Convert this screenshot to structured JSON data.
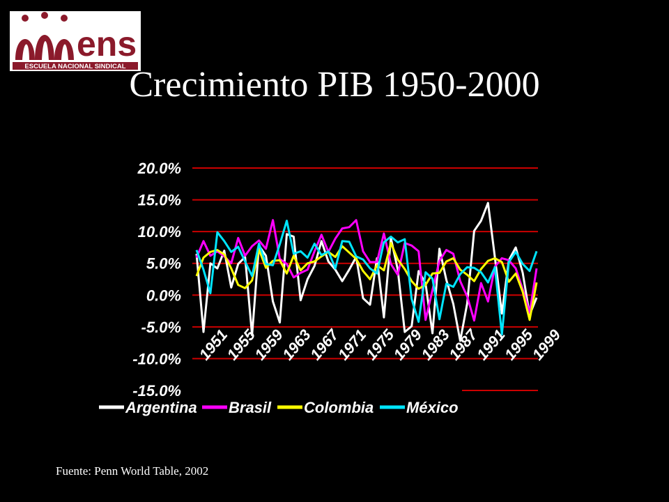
{
  "logo": {
    "text": "ens",
    "subtitle": "ESCUELA NACIONAL SINDICAL",
    "color": "#8b1a2b",
    "icon": "ens-logo"
  },
  "title": "Crecimiento PIB 1950-2000",
  "source": "Fuente: Penn World Table, 2002",
  "colors": {
    "background": "#000000",
    "gridline": "#cc0000",
    "text": "#ffffff"
  },
  "chart_data": {
    "type": "line",
    "title": "",
    "xlabel": "",
    "ylabel": "",
    "x": [
      1951,
      1952,
      1953,
      1954,
      1955,
      1956,
      1957,
      1958,
      1959,
      1960,
      1961,
      1962,
      1963,
      1964,
      1965,
      1966,
      1967,
      1968,
      1969,
      1970,
      1971,
      1972,
      1973,
      1974,
      1975,
      1976,
      1977,
      1978,
      1979,
      1980,
      1981,
      1982,
      1983,
      1984,
      1985,
      1986,
      1987,
      1988,
      1989,
      1990,
      1991,
      1992,
      1993,
      1994,
      1995,
      1996,
      1997,
      1998,
      1999,
      2000
    ],
    "x_tick_labels": [
      "1951",
      "1955",
      "1959",
      "1963",
      "1967",
      "1971",
      "1975",
      "1979",
      "1983",
      "1987",
      "1991",
      "1995",
      "1999"
    ],
    "y_tick_labels": [
      "20.0%",
      "15.0%",
      "10.0%",
      "5.0%",
      "0.0%",
      "-5.0%",
      "-10.0%",
      "-15.0%"
    ],
    "ylim": [
      -15,
      20
    ],
    "grid": true,
    "legend": "bottom",
    "series": [
      {
        "name": "Argentina",
        "color": "#ffffff",
        "values": [
          6.5,
          -5.8,
          5.0,
          4.2,
          7.0,
          1.2,
          4.9,
          6.0,
          -6.3,
          7.8,
          6.2,
          -1.0,
          -4.3,
          9.6,
          9.2,
          -0.8,
          2.5,
          4.6,
          8.5,
          5.3,
          4.0,
          2.2,
          4.0,
          6.0,
          -0.5,
          -1.5,
          5.8,
          -3.5,
          9.0,
          4.0,
          -5.8,
          -4.9,
          3.8,
          1.8,
          -6.0,
          7.3,
          2.4,
          -1.4,
          -7.2,
          -1.3,
          10.1,
          11.7,
          14.5,
          5.9,
          -2.9,
          5.5,
          7.5,
          3.5,
          -3.1,
          -0.4
        ]
      },
      {
        "name": "Brasil",
        "color": "#ff00ff",
        "values": [
          5.9,
          8.5,
          6.2,
          6.9,
          6.1,
          5.0,
          9.0,
          6.2,
          7.7,
          8.6,
          7.3,
          11.8,
          5.7,
          4.9,
          2.8,
          3.5,
          4.0,
          6.9,
          9.5,
          6.8,
          8.9,
          10.5,
          10.7,
          11.8,
          6.9,
          5.2,
          5.2,
          9.7,
          4.9,
          3.2,
          8.2,
          7.8,
          6.9,
          -3.9,
          0.8,
          5.4,
          7.1,
          6.5,
          2.2,
          -0.2,
          -4.0,
          1.9,
          -1.0,
          4.5,
          5.8,
          5.5,
          4.2,
          0.9,
          -2.8,
          4.2
        ]
      },
      {
        "name": "Colombia",
        "color": "#ffff00",
        "values": [
          3.0,
          5.9,
          6.8,
          7.1,
          6.4,
          4.2,
          1.6,
          1.1,
          2.3,
          7.2,
          4.3,
          5.4,
          5.5,
          3.4,
          6.2,
          3.9,
          5.0,
          5.3,
          6.1,
          6.8,
          6.0,
          7.7,
          6.7,
          5.7,
          3.8,
          2.5,
          4.7,
          3.9,
          8.2,
          5.6,
          4.1,
          2.2,
          1.0,
          1.6,
          3.4,
          3.5,
          5.3,
          5.8,
          4.0,
          3.2,
          2.2,
          4.1,
          5.4,
          5.8,
          5.2,
          2.1,
          3.4,
          0.5,
          -3.9,
          2.0
        ]
      },
      {
        "name": "México",
        "color": "#00e5ff",
        "values": [
          7.1,
          4.0,
          0.3,
          9.9,
          8.5,
          6.8,
          7.6,
          5.3,
          3.0,
          8.1,
          4.9,
          4.7,
          8.0,
          11.7,
          6.5,
          6.9,
          5.9,
          8.1,
          6.3,
          6.9,
          4.2,
          8.5,
          8.4,
          6.1,
          5.6,
          4.2,
          3.4,
          8.3,
          9.2,
          8.3,
          8.8,
          -0.6,
          -4.2,
          3.6,
          2.6,
          -3.8,
          1.8,
          1.3,
          3.3,
          4.4,
          4.3,
          3.6,
          2.0,
          4.4,
          -6.2,
          5.2,
          6.8,
          4.9,
          3.8,
          6.9
        ]
      }
    ]
  }
}
